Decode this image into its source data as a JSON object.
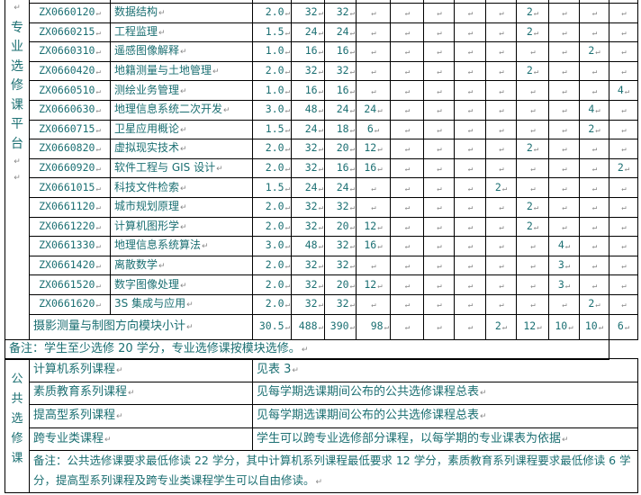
{
  "major_elective": {
    "section_label": "专业选修课平台",
    "rows": [
      {
        "code": "ZX0660120",
        "name": "数据结构",
        "credit": "2.0",
        "hours": "32",
        "lecture": "32",
        "lab": "",
        "sem": [
          "",
          "",
          "",
          "",
          "2",
          "",
          "",
          ""
        ]
      },
      {
        "code": "ZX0660215",
        "name": "工程监理",
        "credit": "1.5",
        "hours": "24",
        "lecture": "24",
        "lab": "",
        "sem": [
          "",
          "",
          "",
          "",
          "2",
          "",
          "",
          ""
        ]
      },
      {
        "code": "ZX0660310",
        "name": "遥感图像解释",
        "credit": "1.0",
        "hours": "16",
        "lecture": "16",
        "lab": "",
        "sem": [
          "",
          "",
          "",
          "",
          "",
          "",
          "2",
          ""
        ]
      },
      {
        "code": "ZX0660420",
        "name": "地籍测量与土地管理",
        "credit": "2.0",
        "hours": "32",
        "lecture": "32",
        "lab": "",
        "sem": [
          "",
          "",
          "",
          "",
          "2",
          "",
          "",
          ""
        ]
      },
      {
        "code": "ZX0660510",
        "name": "测绘业务管理",
        "credit": "1.0",
        "hours": "16",
        "lecture": "16",
        "lab": "",
        "sem": [
          "",
          "",
          "",
          "",
          "",
          "",
          "",
          "4"
        ]
      },
      {
        "code": "ZX0660630",
        "name": "地理信息系统二次开发",
        "credit": "3.0",
        "hours": "48",
        "lecture": "24",
        "lab": "24",
        "sem": [
          "",
          "",
          "",
          "",
          "",
          "",
          "4",
          ""
        ]
      },
      {
        "code": "ZX0660715",
        "name": "卫星应用概论",
        "credit": "1.5",
        "hours": "24",
        "lecture": "18",
        "lab": "6",
        "sem": [
          "",
          "",
          "",
          "",
          "",
          "",
          "2",
          ""
        ]
      },
      {
        "code": "ZX0660820",
        "name": "虚拟现实技术",
        "credit": "2.0",
        "hours": "32",
        "lecture": "20",
        "lab": "12",
        "sem": [
          "",
          "",
          "",
          "",
          "2",
          "",
          "",
          ""
        ]
      },
      {
        "code": "ZX0660920",
        "name": "软件工程与 GIS 设计",
        "credit": "2.0",
        "hours": "32",
        "lecture": "16",
        "lab": "16",
        "sem": [
          "",
          "",
          "",
          "",
          "",
          "",
          "",
          "2"
        ]
      },
      {
        "code": "ZX0661015",
        "name": "科技文件检索",
        "credit": "1.5",
        "hours": "24",
        "lecture": "24",
        "lab": "",
        "sem": [
          "",
          "",
          "",
          "2",
          "",
          "",
          "",
          ""
        ]
      },
      {
        "code": "ZX0661120",
        "name": "城市规划原理",
        "credit": "2.0",
        "hours": "32",
        "lecture": "32",
        "lab": "",
        "sem": [
          "",
          "",
          "",
          "",
          "2",
          "",
          "",
          ""
        ]
      },
      {
        "code": "ZX0661220",
        "name": "计算机图形学",
        "credit": "2.0",
        "hours": "32",
        "lecture": "20",
        "lab": "12",
        "sem": [
          "",
          "",
          "",
          "",
          "2",
          "",
          "",
          ""
        ]
      },
      {
        "code": "ZX0661330",
        "name": "地理信息系统算法",
        "credit": "3.0",
        "hours": "48",
        "lecture": "32",
        "lab": "16",
        "sem": [
          "",
          "",
          "",
          "",
          "",
          "4",
          "",
          ""
        ]
      },
      {
        "code": "ZX0661420",
        "name": "离散数学",
        "credit": "2.0",
        "hours": "32",
        "lecture": "32",
        "lab": "",
        "sem": [
          "",
          "",
          "",
          "",
          "",
          "3",
          "",
          ""
        ]
      },
      {
        "code": "ZX0661520",
        "name": "数字图像处理",
        "credit": "2.0",
        "hours": "32",
        "lecture": "20",
        "lab": "12",
        "sem": [
          "",
          "",
          "",
          "",
          "",
          "3",
          "",
          ""
        ]
      },
      {
        "code": "ZX0661620",
        "name": "3S 集成与应用",
        "credit": "2.0",
        "hours": "32",
        "lecture": "32",
        "lab": "",
        "sem": [
          "",
          "",
          "",
          "",
          "",
          "",
          "2",
          ""
        ]
      }
    ],
    "subtotal": {
      "label": "摄影测量与制图方向模块小计",
      "credit": "30.5",
      "hours": "488",
      "lecture": "390",
      "lab": "98",
      "sem": [
        "",
        "",
        "",
        "2",
        "12",
        "10",
        "10",
        "6"
      ]
    },
    "note": "备注：学生至少选修 20 学分，专业选修课按模块选修。"
  },
  "public_elective": {
    "section_label": "公共选修课",
    "rows": [
      {
        "name": "计算机系列课程",
        "desc": "见表 3"
      },
      {
        "name": "素质教育系列课程",
        "desc": "见每学期选课期间公布的公共选修课程总表"
      },
      {
        "name": "提高型系列课程",
        "desc": "见每学期选课期间公布的公共选修课程总表"
      },
      {
        "name": "跨专业类课程",
        "desc": "学生可以跨专业选修部分课程，以每学期的专业课表为依据"
      }
    ],
    "note": "备注：公共选修课要求最低修读 22 学分，其中计算机系列课程最低要求 12 学分，素质教育系列课程要求最低修读 6 学分，提高型系列课程及跨专业类课程学生可以自由修读。"
  },
  "colors": {
    "text": "#1b6f72",
    "border": "#000000",
    "mark": "#888888"
  }
}
